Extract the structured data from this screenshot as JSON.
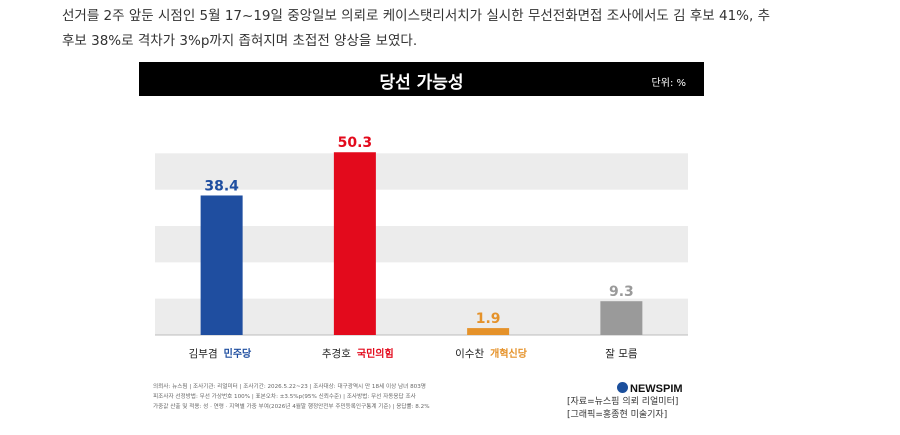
{
  "article": {
    "lines": [
      "선거를 2주 앞둔 시점인 5월 17~19일 중앙일보 의뢰로 케이스탯리서치가 실시한 무선전화면접 조사에서도 김 후보 41%, 추",
      "후보 38%로 격차가 3%p까지 좁혀지며 초접전 양상을 보였다."
    ]
  },
  "chart_data": {
    "type": "bar",
    "title": "당선 가능성",
    "unit": "단위: %",
    "categories": [
      "김부겸",
      "추경호",
      "이수찬",
      "잘 모름"
    ],
    "party_labels": [
      "민주당",
      "국민의힘",
      "개혁신당",
      ""
    ],
    "values": [
      38.4,
      50.3,
      1.9,
      9.3
    ],
    "data_labels": [
      "38.4",
      "50.3",
      "1.9",
      "9.3"
    ],
    "colors": [
      "#1f4ea0",
      "#e30a1c",
      "#e5922a",
      "#9a9a9a"
    ],
    "party_colors": [
      "#1f4ea0",
      "#e30a1c",
      "#e5922a",
      "#333333"
    ],
    "ylim": [
      0,
      60
    ],
    "grid": "horizontal bands"
  },
  "footer": {
    "notes": [
      "의뢰사: 뉴스핌 | 조사기관: 리얼미터 | 조사기간: 2026.5.22~23 | 조사대상: 대구광역시 만 18세 이상 남녀 803명",
      "피조사자 선정방법: 무선 가상번호 100% | 표본오차: ±3.5%p(95% 신뢰수준) | 조사방법: 무선 자동응답 조사",
      "가중값 산출 및 적용: 성 · 연령 · 지역별 가중 부여(2026년 4월말 행정안전부 주민등록인구통계 기준) | 응답률: 8.2%"
    ],
    "logo": "NEWSPIM",
    "credits": [
      "[자료=뉴스핌 의뢰 리얼미터]",
      "[그래픽=홍종현 미술기자]"
    ]
  }
}
